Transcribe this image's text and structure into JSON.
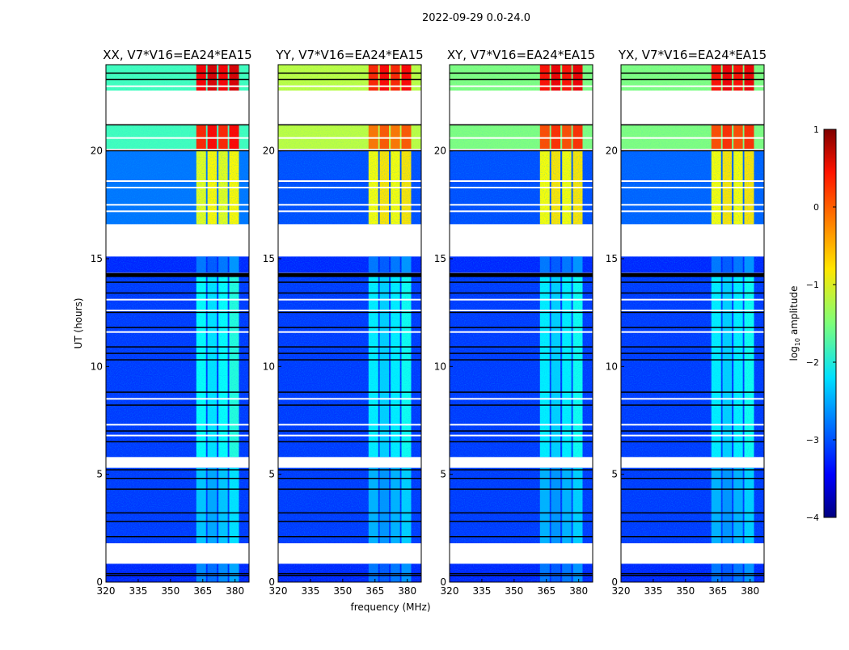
{
  "chart_data": {
    "type": "heatmap",
    "title": "2022-09-29 0.0-24.0",
    "xlabel": "frequency (MHz)",
    "ylabel": "UT (hours)",
    "xlim": [
      320,
      386.5
    ],
    "ylim": [
      0,
      24
    ],
    "xticks": [
      "320",
      "335",
      "350",
      "365",
      "380"
    ],
    "yticks": [
      "0",
      "5",
      "10",
      "15",
      "20"
    ],
    "rfi_bands_mhz": [
      [
        362,
        366.5
      ],
      [
        367.2,
        371.5
      ],
      [
        372.3,
        376.6
      ],
      [
        377.3,
        381.8
      ]
    ],
    "flag_lines_hours": [
      0.3,
      0.38,
      2.1,
      2.8,
      3.2,
      4.3,
      4.8,
      5.2,
      6.5,
      7.0,
      8.2,
      8.8,
      10.3,
      10.6,
      10.9,
      11.8,
      12.5,
      13.4,
      13.9,
      14.3,
      20.0,
      21.2,
      23.3,
      23.6
    ],
    "white_lines_hours": [
      6.8,
      7.3,
      8.5,
      11.6,
      12.6,
      13.1,
      17.2,
      17.5,
      18.3,
      18.6,
      23.0,
      20.6
    ],
    "panels": [
      {
        "title": "XX, V7*V16=EA24*EA15",
        "segments": [
          [
            0.0,
            0.85,
            -3.2,
            -2.7
          ],
          [
            1.8,
            5.3,
            -3.1,
            -2.4
          ],
          [
            5.8,
            14.25,
            -3.1,
            -2.1
          ],
          [
            14.35,
            15.1,
            -3.2,
            -2.8
          ],
          [
            16.6,
            20.0,
            -2.8,
            -1.0
          ],
          [
            20.1,
            21.2,
            -1.8,
            0.2
          ],
          [
            22.8,
            24.0,
            -1.8,
            0.4
          ]
        ]
      },
      {
        "title": "YY, V7*V16=EA24*EA15",
        "segments": [
          [
            0.0,
            0.85,
            -3.2,
            -2.8
          ],
          [
            1.8,
            5.3,
            -3.1,
            -2.5
          ],
          [
            5.8,
            14.25,
            -3.1,
            -2.2
          ],
          [
            14.35,
            15.1,
            -3.2,
            -2.8
          ],
          [
            16.6,
            20.0,
            -3.0,
            -0.9
          ],
          [
            20.1,
            21.2,
            -1.2,
            -0.2
          ],
          [
            22.8,
            24.0,
            -1.2,
            0.2
          ]
        ]
      },
      {
        "title": "XY, V7*V16=EA24*EA15",
        "segments": [
          [
            0.0,
            0.85,
            -3.2,
            -2.8
          ],
          [
            1.8,
            5.3,
            -3.1,
            -2.5
          ],
          [
            5.8,
            14.25,
            -3.1,
            -2.2
          ],
          [
            14.35,
            15.1,
            -3.2,
            -2.8
          ],
          [
            16.6,
            20.0,
            -3.0,
            -0.9
          ],
          [
            20.1,
            21.2,
            -1.5,
            0.0
          ],
          [
            22.8,
            24.0,
            -1.5,
            0.3
          ]
        ]
      },
      {
        "title": "YX, V7*V16=EA24*EA15",
        "segments": [
          [
            0.0,
            0.85,
            -3.2,
            -2.8
          ],
          [
            1.8,
            5.3,
            -3.1,
            -2.5
          ],
          [
            5.8,
            14.25,
            -3.1,
            -2.2
          ],
          [
            14.35,
            15.1,
            -3.2,
            -2.8
          ],
          [
            16.6,
            20.0,
            -2.9,
            -0.9
          ],
          [
            20.1,
            21.2,
            -1.5,
            0.0
          ],
          [
            22.8,
            24.0,
            -1.5,
            0.3
          ]
        ]
      }
    ],
    "colorbar": {
      "label": "log10 amplitude",
      "label_main": "log",
      "label_sub": "10",
      "label_rest": " amplitude",
      "range": [
        -4,
        1
      ],
      "ticks": [
        "1",
        "0",
        "−1",
        "−2",
        "−3",
        "−4"
      ],
      "colormap": "jet"
    }
  }
}
